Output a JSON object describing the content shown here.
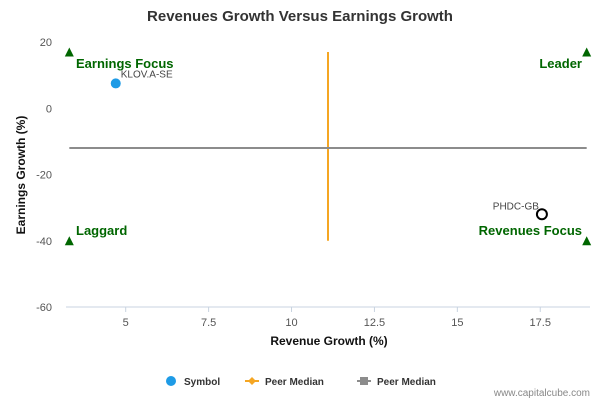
{
  "chart_data": {
    "type": "scatter",
    "title": "Revenues Growth Versus Earnings Growth",
    "xlabel": "Revenue Growth (%)",
    "ylabel": "Earnings Growth (%)",
    "xlim": [
      3.2,
      19.0
    ],
    "ylim": [
      -60,
      20
    ],
    "x_ticks": [
      5,
      7.5,
      10,
      12.5,
      15,
      17.5
    ],
    "x_tick_labels": [
      "5",
      "7.5",
      "10",
      "12.5",
      "15",
      "17.5"
    ],
    "y_ticks": [
      20,
      0,
      -20,
      -40,
      -60
    ],
    "y_tick_labels": [
      "20",
      "0",
      "-20",
      "-40",
      "-60"
    ],
    "points": [
      {
        "label": "KLOV.A-SE",
        "x": 4.7,
        "y": 7.5,
        "style": "symbol",
        "color": "#1e9be6"
      },
      {
        "label": "PHDC-GB",
        "x": 17.55,
        "y": -32,
        "style": "peer",
        "color": "#000000"
      }
    ],
    "peer_median_x": 11.1,
    "peer_median_y": -12,
    "median_x_color": "#f5a623",
    "median_y_color": "#8c8c8c",
    "quadrants": {
      "top_left": "Earnings Focus",
      "top_right": "Leader",
      "bottom_left": "Laggard",
      "bottom_right": "Revenues Focus"
    },
    "quadrant_color": "#006600",
    "legend": {
      "position": "bottom-center",
      "items": [
        {
          "label": "Symbol",
          "marker": "circle",
          "color": "#1e9be6"
        },
        {
          "label": "Peer Median",
          "marker": "diamond-line",
          "color": "#f5a623"
        },
        {
          "label": "Peer Median",
          "marker": "square-line",
          "color": "#8c8c8c"
        }
      ]
    },
    "grid": false
  },
  "credit": "www.capitalcube.com"
}
